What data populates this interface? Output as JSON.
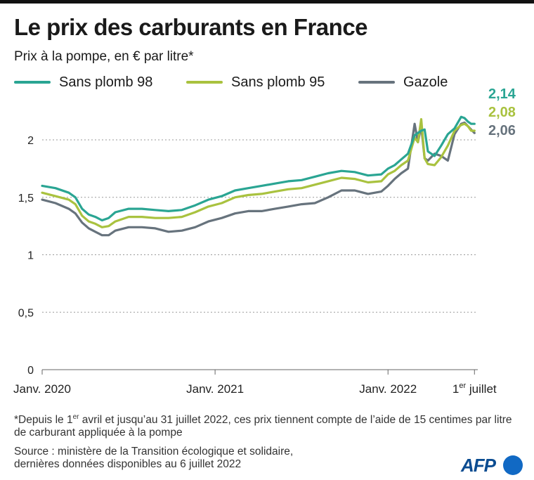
{
  "title": "Le prix des carburants en France",
  "subtitle": "Prix à la pompe, en € par litre*",
  "legend": [
    {
      "label": "Sans plomb 98",
      "color": "#2aa593"
    },
    {
      "label": "Sans plomb 95",
      "color": "#a9c23f"
    },
    {
      "label": "Gazole",
      "color": "#67737d"
    }
  ],
  "footnote": {
    "before": "*Depuis le 1",
    "sup": "er",
    "after": " avril et jusqu’au 31 juillet 2022, ces prix tiennent compte de l’aide de 15 centimes par litre de carburant appliquée à la pompe"
  },
  "source": {
    "line1": "Source : ministère de la Transition écologique et solidaire,",
    "line2": "dernières données disponibles au 6 juillet 2022"
  },
  "logo": "AFP",
  "chart_data": {
    "type": "line",
    "title": "Le prix des carburants en France",
    "ylabel": "Prix à la pompe, en € par litre*",
    "ylim": [
      0,
      2.3
    ],
    "xlim": [
      0,
      131
    ],
    "grid": true,
    "x_unit": "weeks since Janv. 2020",
    "yticks": [
      {
        "value": 0,
        "label": "0"
      },
      {
        "value": 0.5,
        "label": "0,5"
      },
      {
        "value": 1,
        "label": "1"
      },
      {
        "value": 1.5,
        "label": "1,5"
      },
      {
        "value": 2,
        "label": "2"
      }
    ],
    "xticks": [
      {
        "value": 0,
        "label": "Janv. 2020",
        "sup": ""
      },
      {
        "value": 52,
        "label": "Janv. 2021",
        "sup": ""
      },
      {
        "value": 104,
        "label": "Janv. 2022",
        "sup": ""
      },
      {
        "value": 130,
        "label": " juillet",
        "prefix": "1",
        "sup": "er"
      }
    ],
    "series": [
      {
        "name": "Sans plomb 98",
        "color": "#2aa593",
        "end_label": "2,14",
        "x": [
          0,
          4,
          8,
          10,
          12,
          14,
          16,
          18,
          20,
          22,
          26,
          30,
          34,
          38,
          42,
          46,
          50,
          54,
          58,
          62,
          66,
          70,
          74,
          78,
          82,
          86,
          90,
          94,
          98,
          102,
          104,
          106,
          108,
          110,
          112,
          114,
          115,
          116,
          118,
          120,
          122,
          124,
          126,
          127,
          128,
          129,
          130
        ],
        "values": [
          1.6,
          1.58,
          1.54,
          1.5,
          1.4,
          1.35,
          1.33,
          1.3,
          1.32,
          1.37,
          1.4,
          1.4,
          1.39,
          1.38,
          1.39,
          1.43,
          1.48,
          1.51,
          1.56,
          1.58,
          1.6,
          1.62,
          1.64,
          1.65,
          1.68,
          1.71,
          1.73,
          1.72,
          1.69,
          1.7,
          1.75,
          1.78,
          1.83,
          1.88,
          2.04,
          2.08,
          2.09,
          1.9,
          1.86,
          1.95,
          2.05,
          2.1,
          2.2,
          2.19,
          2.16,
          2.14,
          2.14
        ]
      },
      {
        "name": "Sans plomb 95",
        "color": "#a9c23f",
        "end_label": "2,08",
        "x": [
          0,
          4,
          8,
          10,
          12,
          14,
          16,
          18,
          20,
          22,
          26,
          30,
          34,
          38,
          42,
          46,
          50,
          54,
          58,
          62,
          66,
          70,
          74,
          78,
          82,
          86,
          90,
          94,
          98,
          102,
          104,
          106,
          108,
          110,
          112,
          113,
          114,
          115,
          116,
          118,
          120,
          122,
          124,
          126,
          127,
          128,
          129,
          130
        ],
        "values": [
          1.54,
          1.51,
          1.48,
          1.44,
          1.34,
          1.29,
          1.27,
          1.24,
          1.25,
          1.29,
          1.33,
          1.33,
          1.32,
          1.32,
          1.33,
          1.37,
          1.42,
          1.45,
          1.5,
          1.52,
          1.53,
          1.55,
          1.57,
          1.58,
          1.61,
          1.64,
          1.67,
          1.66,
          1.63,
          1.64,
          1.7,
          1.73,
          1.78,
          1.82,
          2.02,
          1.98,
          2.18,
          1.84,
          1.79,
          1.78,
          1.85,
          1.95,
          2.08,
          2.13,
          2.14,
          2.12,
          2.08,
          2.08
        ]
      },
      {
        "name": "Gazole",
        "color": "#67737d",
        "end_label": "2,06",
        "x": [
          0,
          4,
          8,
          10,
          12,
          14,
          16,
          18,
          20,
          22,
          26,
          30,
          34,
          38,
          42,
          46,
          50,
          54,
          58,
          62,
          66,
          70,
          74,
          78,
          82,
          86,
          90,
          94,
          98,
          102,
          104,
          106,
          108,
          110,
          112,
          113,
          114,
          115,
          116,
          118,
          120,
          122,
          124,
          126,
          127,
          128,
          129,
          130
        ],
        "values": [
          1.48,
          1.45,
          1.4,
          1.36,
          1.28,
          1.23,
          1.2,
          1.17,
          1.17,
          1.21,
          1.24,
          1.24,
          1.23,
          1.2,
          1.21,
          1.24,
          1.29,
          1.32,
          1.36,
          1.38,
          1.38,
          1.4,
          1.42,
          1.44,
          1.45,
          1.5,
          1.56,
          1.56,
          1.53,
          1.55,
          1.6,
          1.66,
          1.71,
          1.75,
          2.14,
          1.98,
          2.12,
          1.84,
          1.82,
          1.88,
          1.86,
          1.82,
          2.05,
          2.14,
          2.15,
          2.12,
          2.09,
          2.06
        ]
      }
    ]
  }
}
